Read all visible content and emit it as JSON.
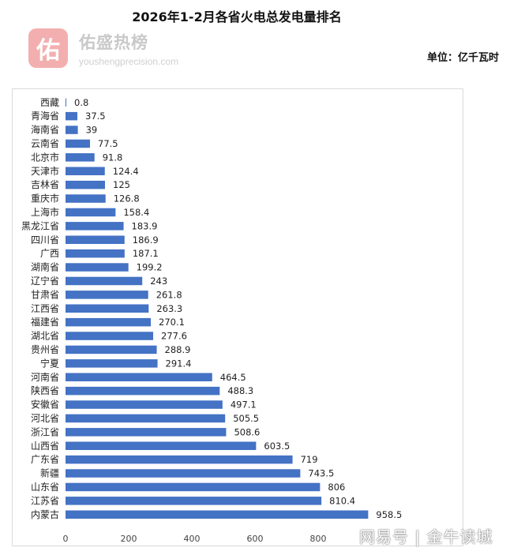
{
  "header": {
    "title": "2026年1-2月各省火电总发电量排名",
    "unit": "单位：亿千瓦时"
  },
  "logo": {
    "glyph": "佑",
    "name": "佑盛热榜",
    "url": "yousheng­precision.com"
  },
  "watermark": "网易号 | 金牛读城",
  "colors": {
    "bar": "#4472c4",
    "logo_bg": "#f2a2a2"
  },
  "chart_data": {
    "type": "bar",
    "orientation": "horizontal",
    "title": "2026年1-2月各省火电总发电量排名",
    "unit": "单位：亿千瓦时",
    "categories": [
      "西藏",
      "青海省",
      "海南省",
      "云南省",
      "北京市",
      "天津市",
      "吉林省",
      "重庆市",
      "上海市",
      "黑龙江省",
      "四川省",
      "广西",
      "湖南省",
      "辽宁省",
      "甘肃省",
      "江西省",
      "福建省",
      "湖北省",
      "贵州省",
      "宁夏",
      "河南省",
      "陕西省",
      "安徽省",
      "河北省",
      "浙江省",
      "山西省",
      "广东省",
      "新疆",
      "山东省",
      "江苏省",
      "内蒙古"
    ],
    "values": [
      0.8,
      37.5,
      39,
      77.5,
      91.8,
      124.4,
      125,
      126.8,
      158.4,
      183.9,
      186.9,
      187.1,
      199.2,
      243,
      261.8,
      263.3,
      270.1,
      277.6,
      288.9,
      291.4,
      464.5,
      488.3,
      497.1,
      505.5,
      508.6,
      603.5,
      719,
      743.5,
      806,
      810.4,
      958.5
    ],
    "data_labels": [
      "0.8",
      "37.5",
      "39",
      "77.5",
      "91.8",
      "124.4",
      "125",
      "126.8",
      "158.4",
      "183.9",
      "186.9",
      "187.1",
      "199.2",
      "243",
      "261.8",
      "263.3",
      "270.1",
      "277.6",
      "288.9",
      "291.4",
      "464.5",
      "488.3",
      "497.1",
      "505.5",
      "508.6",
      "603.5",
      "719",
      "743.5",
      "806",
      "810.4",
      "958.5"
    ],
    "xlim": [
      0,
      1000
    ],
    "x_ticks": [
      "0",
      "200",
      "400",
      "600",
      "800"
    ],
    "grid": false,
    "legend": "none"
  }
}
